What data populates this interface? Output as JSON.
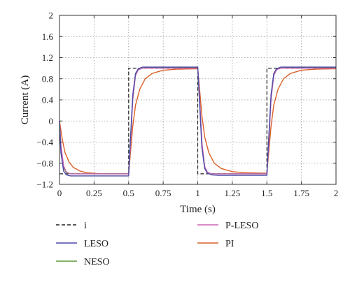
{
  "chart_data": {
    "type": "line",
    "xlabel": "Time (s)",
    "ylabel": "Current (A)",
    "xlim": [
      0,
      2
    ],
    "ylim": [
      -1.2,
      2
    ],
    "x_ticks": [
      0,
      0.25,
      0.5,
      0.75,
      1,
      1.25,
      1.5,
      1.75,
      2
    ],
    "x_tick_labels": [
      "0",
      "0.25",
      "0.5",
      "0.75",
      "1",
      "1.25",
      "1.5",
      "1.75",
      "2"
    ],
    "y_ticks": [
      -1.2,
      -0.8,
      -0.4,
      0,
      0.4,
      0.8,
      1.2,
      1.6,
      2
    ],
    "y_tick_labels": [
      "−1.2",
      "−0.8",
      "−0.4",
      "0",
      "0.4",
      "0.8",
      "1.2",
      "1.6",
      "2"
    ],
    "grid": true,
    "legend_position": "below",
    "series": [
      {
        "name": "i",
        "color": "#222222",
        "dash": true,
        "x": [
          0,
          0.5,
          0.5,
          1,
          1,
          1.5,
          1.5,
          2
        ],
        "y": [
          -1,
          -1,
          1,
          1,
          -1,
          -1,
          1,
          1
        ]
      },
      {
        "name": "LESO",
        "color": "#4b4aa8",
        "dash": false,
        "x": [
          0,
          0.01,
          0.03,
          0.05,
          0.08,
          0.12,
          0.2,
          0.3,
          0.4,
          0.5,
          0.51,
          0.53,
          0.55,
          0.57,
          0.6,
          0.65,
          0.8,
          0.9,
          1.0,
          1.01,
          1.03,
          1.05,
          1.07,
          1.1,
          1.15,
          1.3,
          1.4,
          1.5,
          1.51,
          1.53,
          1.55,
          1.57,
          1.6,
          1.65,
          1.8,
          1.9,
          2.0
        ],
        "y": [
          0,
          -0.6,
          -0.95,
          -1.02,
          -1.04,
          -1.04,
          -1.04,
          -1.04,
          -1.04,
          -1.04,
          -0.5,
          0.5,
          0.9,
          0.99,
          1.02,
          1.02,
          1.02,
          1.02,
          1.02,
          0.5,
          -0.5,
          -0.9,
          -0.99,
          -1.02,
          -1.03,
          -1.03,
          -1.03,
          -1.03,
          -0.5,
          0.5,
          0.9,
          0.99,
          1.02,
          1.02,
          1.02,
          1.02,
          1.02
        ]
      },
      {
        "name": "NESO",
        "color": "#5a9a3a",
        "dash": false,
        "x": [
          0,
          0.01,
          0.03,
          0.05,
          0.08,
          0.12,
          0.2,
          0.3,
          0.4,
          0.5,
          0.51,
          0.53,
          0.55,
          0.57,
          0.6,
          0.65,
          0.8,
          0.9,
          1.0,
          1.01,
          1.03,
          1.05,
          1.07,
          1.1,
          1.15,
          1.3,
          1.4,
          1.5,
          1.51,
          1.53,
          1.55,
          1.57,
          1.6,
          1.65,
          1.8,
          1.9,
          2.0
        ],
        "y": [
          0,
          -0.5,
          -0.88,
          -0.98,
          -1.0,
          -1.0,
          -1.0,
          -1.0,
          -1.0,
          -1.0,
          -0.55,
          0.45,
          0.88,
          0.98,
          1.0,
          1.01,
          1.01,
          1.01,
          1.01,
          0.55,
          -0.45,
          -0.88,
          -0.98,
          -1.0,
          -1.0,
          -1.0,
          -1.0,
          -1.0,
          -0.55,
          0.45,
          0.88,
          0.98,
          1.0,
          1.01,
          1.01,
          1.01,
          1.01
        ]
      },
      {
        "name": "P-LESO",
        "color": "#c864b4",
        "dash": false,
        "x": [
          0,
          0.01,
          0.03,
          0.05,
          0.08,
          0.12,
          0.2,
          0.3,
          0.4,
          0.5,
          0.51,
          0.53,
          0.55,
          0.57,
          0.6,
          0.65,
          0.8,
          0.9,
          1.0,
          1.01,
          1.03,
          1.05,
          1.07,
          1.1,
          1.15,
          1.3,
          1.4,
          1.5,
          1.51,
          1.53,
          1.55,
          1.57,
          1.6,
          1.65,
          1.8,
          1.9,
          2.0
        ],
        "y": [
          0,
          -0.45,
          -0.85,
          -0.97,
          -1.0,
          -1.0,
          -1.0,
          -1.0,
          -1.0,
          -1.0,
          -0.6,
          0.4,
          0.86,
          0.97,
          1.0,
          1.0,
          1.0,
          1.0,
          1.0,
          0.6,
          -0.4,
          -0.86,
          -0.97,
          -1.0,
          -1.0,
          -1.0,
          -1.0,
          -1.0,
          -0.6,
          0.4,
          0.86,
          0.97,
          1.0,
          1.0,
          1.0,
          1.0,
          1.0
        ]
      },
      {
        "name": "PI",
        "color": "#d9602a",
        "dash": false,
        "x": [
          0,
          0.02,
          0.04,
          0.07,
          0.1,
          0.15,
          0.2,
          0.3,
          0.4,
          0.5,
          0.51,
          0.53,
          0.55,
          0.58,
          0.62,
          0.67,
          0.75,
          0.85,
          1.0,
          1.01,
          1.03,
          1.05,
          1.08,
          1.12,
          1.17,
          1.25,
          1.35,
          1.5,
          1.51,
          1.53,
          1.55,
          1.58,
          1.62,
          1.67,
          1.75,
          1.85,
          2.0
        ],
        "y": [
          0,
          -0.35,
          -0.6,
          -0.78,
          -0.88,
          -0.95,
          -0.98,
          -1.0,
          -1.0,
          -1.0,
          -0.7,
          -0.1,
          0.3,
          0.6,
          0.8,
          0.9,
          0.96,
          0.98,
          0.99,
          0.7,
          0.1,
          -0.3,
          -0.6,
          -0.8,
          -0.9,
          -0.96,
          -0.98,
          -0.99,
          -0.7,
          -0.1,
          0.3,
          0.6,
          0.8,
          0.9,
          0.96,
          0.98,
          0.99
        ]
      }
    ]
  }
}
